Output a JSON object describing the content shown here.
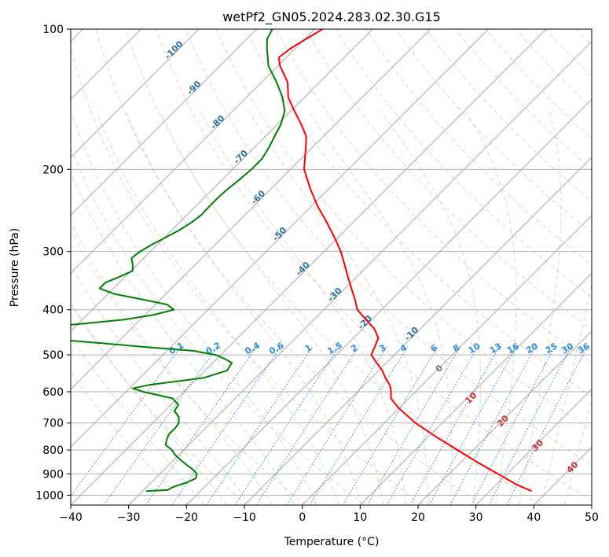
{
  "chart_data": {
    "type": "line",
    "diagram": "skew-T log-P",
    "title": "wetPf2_GN05.2024.283.02.30.G15",
    "xlabel": "Temperature (°C)",
    "ylabel": "Pressure (hPa)",
    "xlim": [
      -40,
      50
    ],
    "ylim": [
      1050,
      100
    ],
    "y_scale": "log",
    "grid": true,
    "x_ticks": [
      "−40",
      "−30",
      "−20",
      "−10",
      "0",
      "10",
      "20",
      "30",
      "40",
      "50"
    ],
    "y_ticks": [
      "100",
      "200",
      "300",
      "400",
      "500",
      "600",
      "700",
      "800",
      "900",
      "1000"
    ],
    "isotherm_labels": [
      "-100",
      "-90",
      "-80",
      "-70",
      "-60",
      "-50",
      "-40",
      "-30",
      "-20",
      "-10"
    ],
    "mixing_ratio_labels": [
      "0.1",
      "0.2",
      "0.4",
      "0.6",
      "1",
      "1.5",
      "2",
      "3",
      "4",
      "6",
      "8",
      "10",
      "13",
      "16",
      "20",
      "25",
      "30",
      "36"
    ],
    "moist_adiabat_labels": [
      "0",
      "10",
      "20",
      "30",
      "40"
    ],
    "series": [
      {
        "color": "#ff0000",
        "p": [
          980,
          950,
          900,
          850,
          800,
          750,
          700,
          650,
          620,
          600,
          580,
          560,
          540,
          520,
          500,
          480,
          460,
          440,
          420,
          400,
          380,
          360,
          340,
          320,
          300,
          280,
          260,
          240,
          220,
          200,
          180,
          170,
          160,
          150,
          140,
          130,
          120,
          115,
          110,
          105,
          100
        ],
        "t": [
          37.2,
          33.6,
          28.4,
          22.9,
          17.3,
          11.4,
          5.4,
          -0.1,
          -3.1,
          -4.2,
          -5.6,
          -7.6,
          -9.4,
          -11.7,
          -14.0,
          -14.8,
          -15.7,
          -17.9,
          -21.0,
          -24.2,
          -26.4,
          -28.9,
          -31.5,
          -34.2,
          -37.1,
          -40.6,
          -44.5,
          -48.9,
          -53.2,
          -57.6,
          -61.0,
          -62.9,
          -65.9,
          -69.3,
          -72.8,
          -75.5,
          -79.6,
          -81.3,
          -80.8,
          -79.8,
          -78.6
        ]
      },
      {
        "color": "#008000",
        "p": [
          980,
          975,
          960,
          940,
          920,
          900,
          880,
          860,
          840,
          820,
          800,
          780,
          760,
          740,
          720,
          700,
          680,
          660,
          640,
          620,
          600,
          590,
          580,
          560,
          540,
          520,
          510,
          500,
          490,
          480,
          470,
          460,
          455,
          450,
          445,
          440,
          430,
          420,
          410,
          400,
          390,
          380,
          370,
          360,
          350,
          340,
          330,
          320,
          310,
          300,
          290,
          280,
          270,
          260,
          250,
          240,
          230,
          220,
          210,
          200,
          190,
          180,
          170,
          160,
          150,
          140,
          130,
          120,
          110,
          105,
          100
        ],
        "t": [
          -29.4,
          -25.9,
          -25.4,
          -23.9,
          -23.0,
          -23.6,
          -25.1,
          -27.0,
          -28.8,
          -30.6,
          -32.0,
          -34.0,
          -34.7,
          -35.3,
          -35.2,
          -35.5,
          -36.5,
          -38.3,
          -38.7,
          -40.8,
          -47.0,
          -49.4,
          -47.2,
          -39.0,
          -36.2,
          -36.7,
          -38.6,
          -40.9,
          -45.5,
          -55.2,
          -64.4,
          -74.3,
          -83.0,
          -85.0,
          -84.5,
          -80.5,
          -70.3,
          -62.7,
          -58.4,
          -55.9,
          -57.9,
          -63.2,
          -68.9,
          -72.4,
          -72.4,
          -71.0,
          -69.7,
          -70.8,
          -72.1,
          -71.8,
          -70.9,
          -69.8,
          -68.7,
          -67.9,
          -67.5,
          -67.6,
          -67.6,
          -67.4,
          -67.0,
          -66.7,
          -66.7,
          -67.4,
          -68.4,
          -69.4,
          -71.0,
          -73.8,
          -77.4,
          -81.6,
          -84.9,
          -86.5,
          -87.3
        ]
      }
    ]
  }
}
